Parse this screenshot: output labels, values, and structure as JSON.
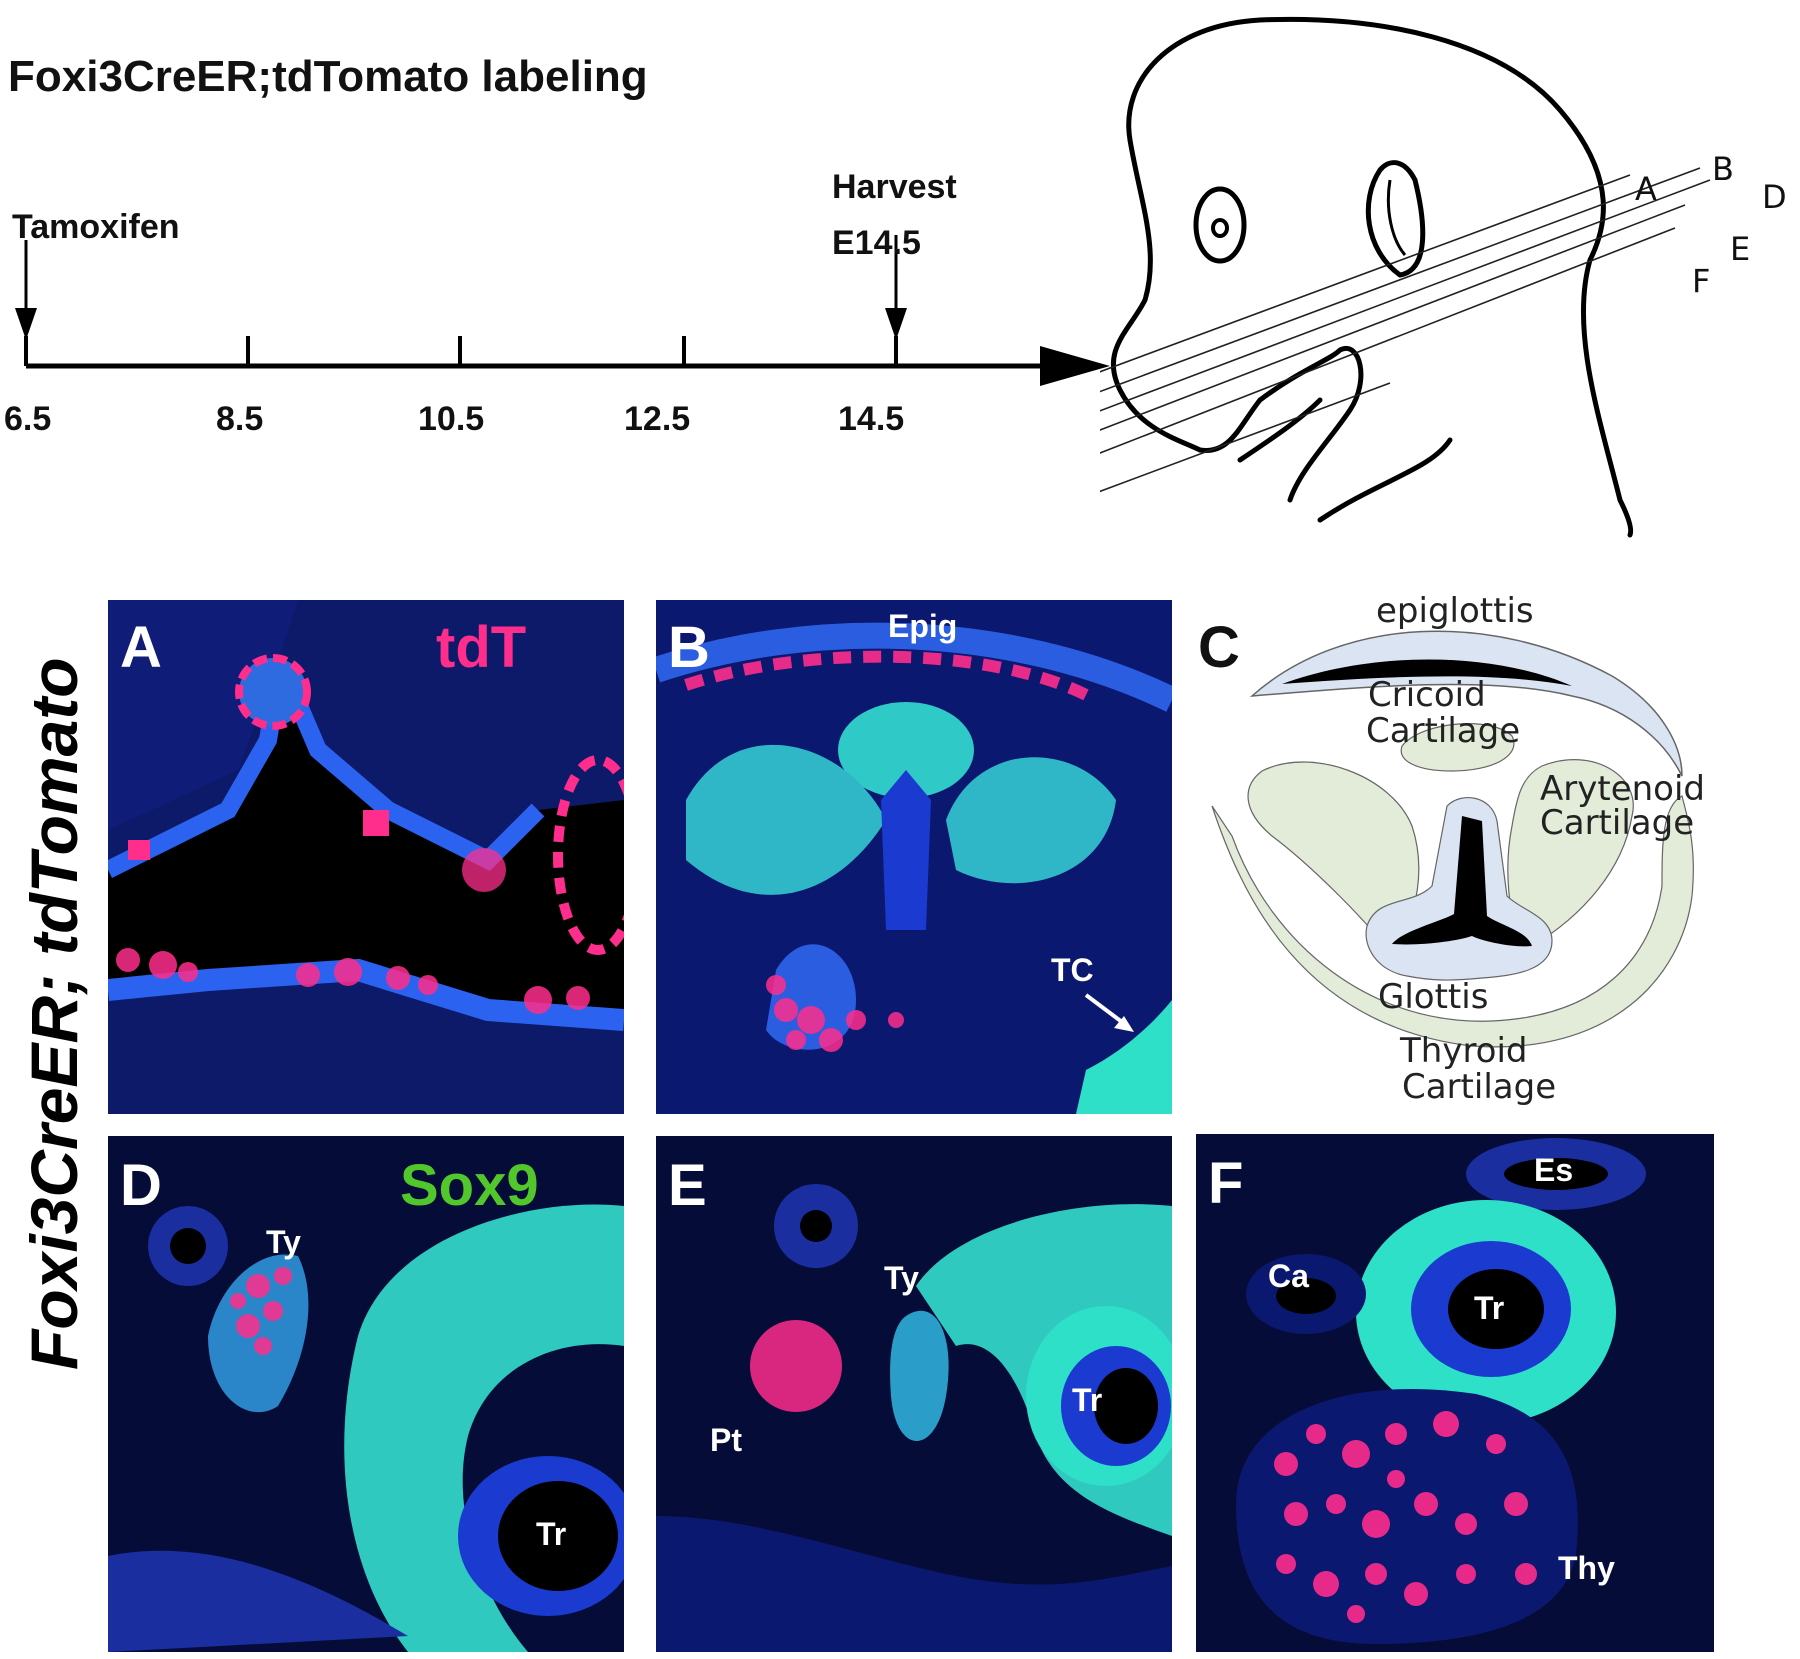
{
  "title": "Foxi3CreER;tdTomato labeling",
  "timeline": {
    "start_label": "Tamoxifen",
    "end_label_line1": "Harvest",
    "end_label_line2": "E14.5",
    "ticks": [
      "6.5",
      "8.5",
      "10.5",
      "12.5",
      "14.5"
    ]
  },
  "embryo": {
    "section_lines": [
      "A",
      "B",
      "D",
      "E",
      "F"
    ]
  },
  "side_label": "Foxi3CreER; tdTomato",
  "panels": {
    "A": {
      "letter": "A",
      "stain": "tdT"
    },
    "B": {
      "letter": "B",
      "label_top": "Epig",
      "label_tc": "TC"
    },
    "C": {
      "letter": "C",
      "epiglottis": "epiglottis",
      "cricoid_1": "Cricoid",
      "cricoid_2": "Cartilage",
      "arytenoid_1": "Arytenoid",
      "arytenoid_2": "Cartilage",
      "glottis": "Glottis",
      "thyroid_1": "Thyroid",
      "thyroid_2": "Cartilage"
    },
    "D": {
      "letter": "D",
      "stain": "Sox9",
      "ty": "Ty",
      "tr": "Tr"
    },
    "E": {
      "letter": "E",
      "ty": "Ty",
      "tr": "Tr",
      "pt": "Pt"
    },
    "F": {
      "letter": "F",
      "es": "Es",
      "ca": "Ca",
      "tr": "Tr",
      "thy": "Thy"
    }
  },
  "colors": {
    "nuclei": "#1a3fd8",
    "sox9": "#2fe0c8",
    "tdtomato": "#ff2d6e",
    "background": "#020514"
  }
}
